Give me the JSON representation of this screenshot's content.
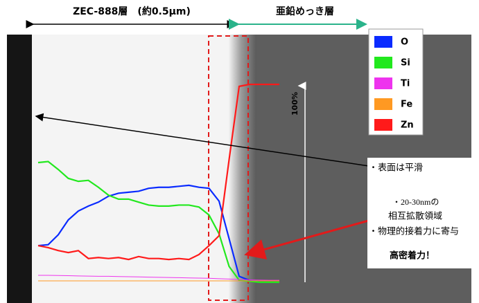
{
  "chart_data": {
    "type": "line",
    "left_layer": "ZEC-888層　(約0.5μm)",
    "right_layer": "亜鉛めっき層",
    "scale_label": "100%",
    "annotations": [
      "・表面は平滑",
      "・20-30nmの",
      "相互拡散領域",
      "・物理的接着力に寄与",
      "高密着力！"
    ],
    "categories": [
      null,
      null,
      null,
      null,
      null,
      null,
      null,
      null,
      null,
      null,
      null,
      null,
      null,
      null,
      null,
      null,
      null,
      null,
      null,
      null,
      null,
      null,
      null,
      null,
      null
    ],
    "ylim": [
      0,
      100
    ],
    "legend": "top-right",
    "series": [
      {
        "name": "O",
        "color": "#0a2bff",
        "values": [
          18.5,
          19,
          24,
          31.5,
          36,
          38.5,
          40.5,
          43.5,
          45,
          45.5,
          46,
          47.5,
          48,
          48,
          48.5,
          49,
          48,
          47.5,
          41,
          22,
          3,
          1,
          0.5,
          null,
          null
        ]
      },
      {
        "name": "Si",
        "color": "#22e81e",
        "values": [
          60.5,
          61,
          57,
          52.5,
          51,
          51.5,
          48,
          44,
          42,
          42,
          40.5,
          39,
          38.5,
          38.5,
          39,
          39,
          38,
          34,
          24.5,
          8,
          1,
          0.5,
          0,
          0,
          0
        ]
      },
      {
        "name": "Ti",
        "color": "#ee33ee",
        "values": [
          3.5,
          3.5,
          3.4,
          3.3,
          3.2,
          3.1,
          3,
          3,
          2.9,
          2.8,
          2.7,
          2.6,
          2.5,
          2.4,
          2.3,
          2.2,
          2.1,
          2,
          1.8,
          1.6,
          1.4,
          1.2,
          1.1,
          1,
          1
        ]
      },
      {
        "name": "Fe",
        "color": "#ff9922",
        "values": [
          0.7,
          0.7,
          0.7,
          0.7,
          0.7,
          0.7,
          0.7,
          0.7,
          0.7,
          0.7,
          0.7,
          0.7,
          0.7,
          0.7,
          0.7,
          0.7,
          0.7,
          0.7,
          0.7,
          0.7,
          0.7,
          0.7,
          0.7,
          0.7,
          0.7
        ]
      },
      {
        "name": "Zn",
        "color": "#ff1a1a",
        "values": [
          18.5,
          17.5,
          16,
          15,
          16,
          12,
          12.5,
          12,
          12.5,
          11.5,
          13,
          12,
          12,
          11.5,
          12,
          11.5,
          14,
          18.5,
          23.5,
          62,
          99,
          100,
          100,
          100,
          100
        ]
      }
    ]
  }
}
